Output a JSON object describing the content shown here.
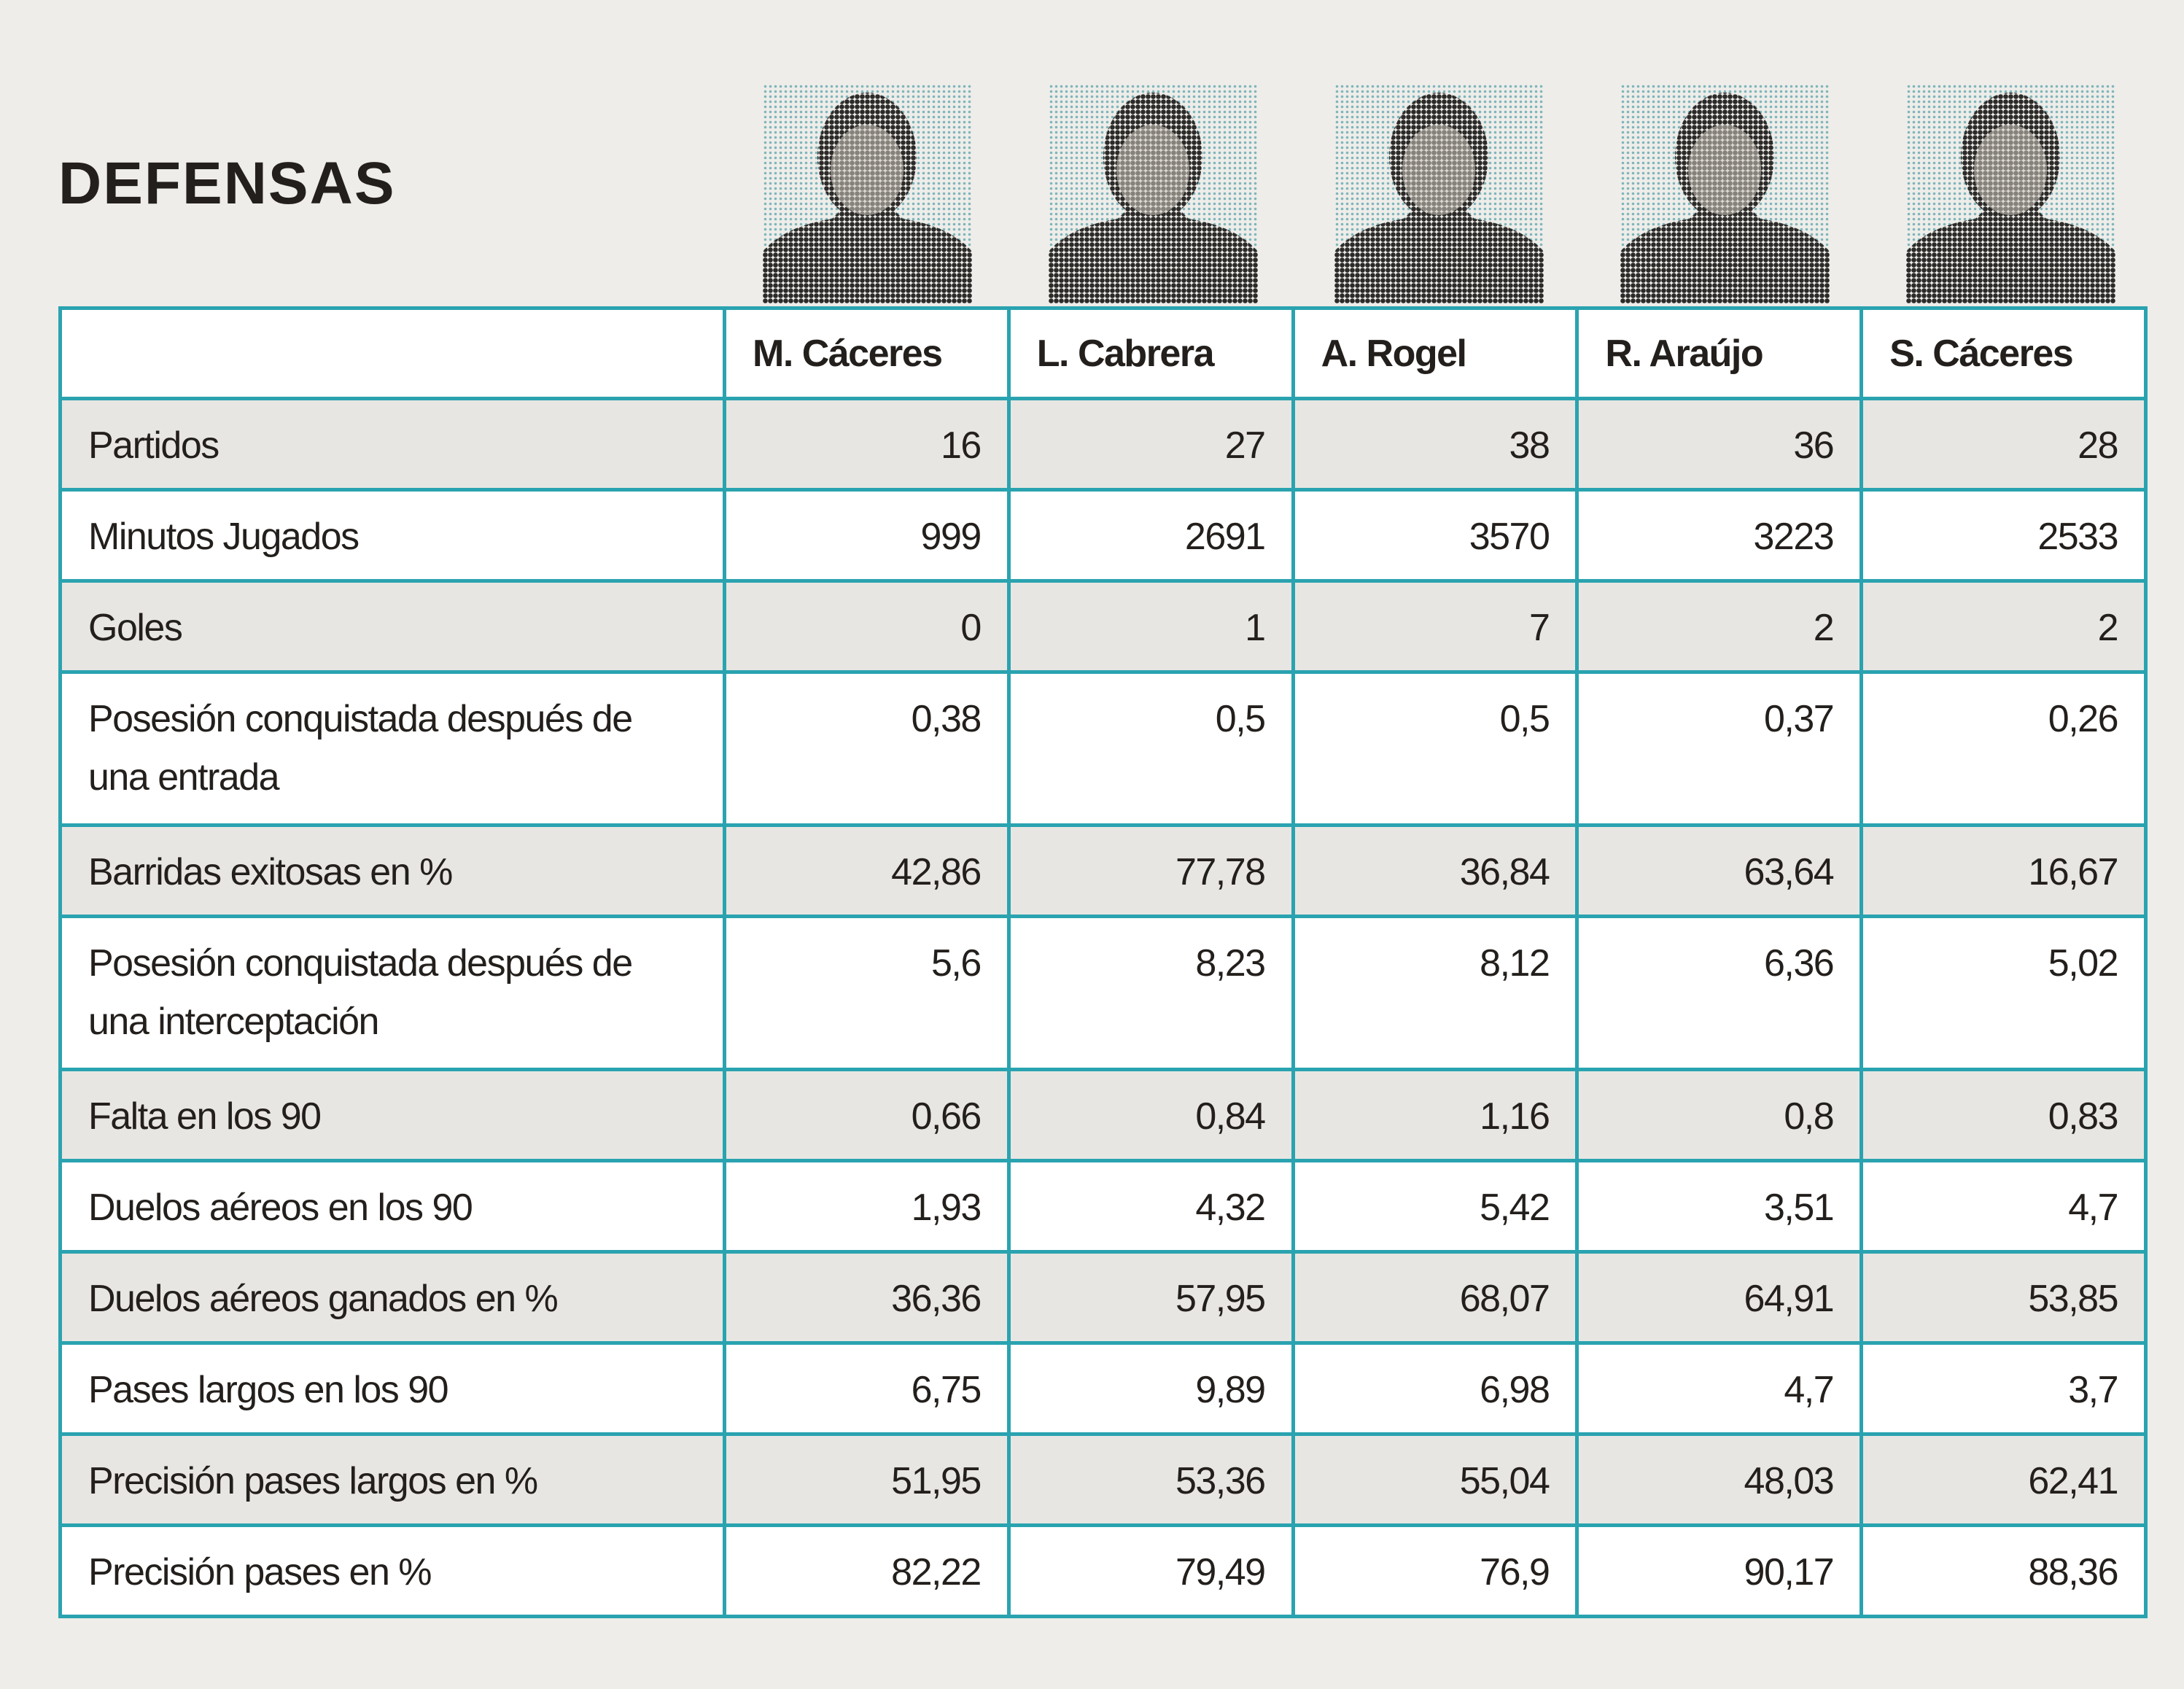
{
  "title": "DEFENSAS",
  "table": {
    "header": [
      "M. Cáceres",
      "L. Cabrera",
      "A. Rogel",
      "R. Araújo",
      "S. Cáceres"
    ],
    "rows": [
      [
        "Partidos",
        "16",
        "27",
        "38",
        "36",
        "28"
      ],
      [
        "Minutos Jugados",
        "999",
        "2691",
        "3570",
        "3223",
        "2533"
      ],
      [
        "Goles",
        "0",
        "1",
        "7",
        "2",
        "2"
      ],
      [
        "Posesión conquistada después de una entrada",
        "0,38",
        "0,5",
        "0,5",
        "0,37",
        "0,26"
      ],
      [
        "Barridas exitosas en %",
        "42,86",
        "77,78",
        "36,84",
        "63,64",
        "16,67"
      ],
      [
        "Posesión conquistada después de una interceptación",
        "5,6",
        "8,23",
        "8,12",
        "6,36",
        "5,02"
      ],
      [
        "Falta en los 90",
        "0,66",
        "0,84",
        "1,16",
        "0,8",
        "0,83"
      ],
      [
        "Duelos aéreos en los 90",
        "1,93",
        "4,32",
        "5,42",
        "3,51",
        "4,7"
      ],
      [
        "Duelos aéreos ganados en %",
        "36,36",
        "57,95",
        "68,07",
        "64,91",
        "53,85"
      ],
      [
        "Pases largos en los 90",
        "6,75",
        "9,89",
        "6,98",
        "4,7",
        "3,7"
      ],
      [
        "Precisión pases largos en %",
        "51,95",
        "53,36",
        "55,04",
        "48,03",
        "62,41"
      ],
      [
        "Precisión pases en %",
        "82,22",
        "79,49",
        "76,9",
        "90,17",
        "88,36"
      ]
    ]
  }
}
